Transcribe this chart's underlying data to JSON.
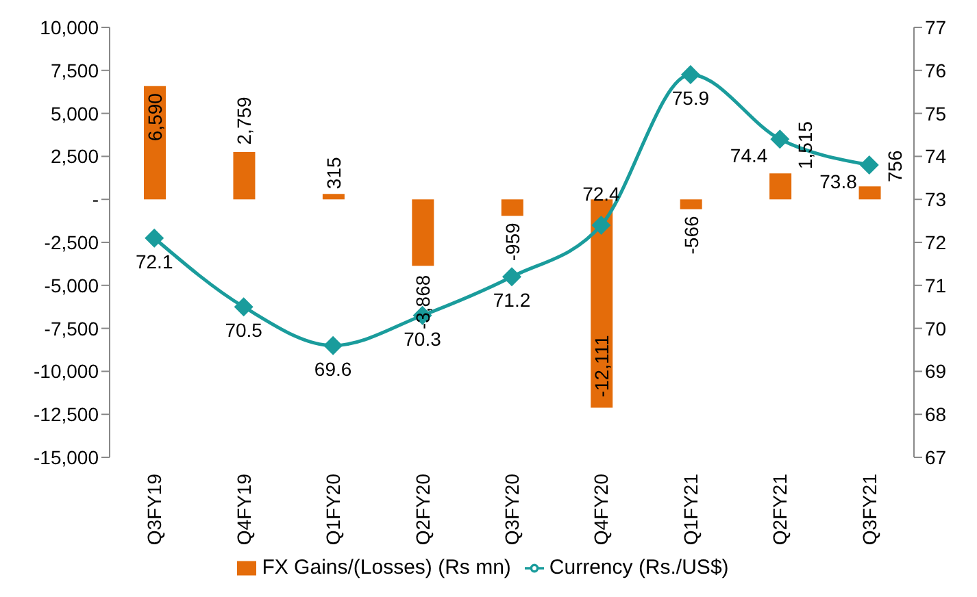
{
  "chart_data": {
    "type": "bar",
    "categories": [
      "Q3FY19",
      "Q4FY19",
      "Q1FY20",
      "Q2FY20",
      "Q3FY20",
      "Q4FY20",
      "Q1FY21",
      "Q2FY21",
      "Q3FY21"
    ],
    "series": [
      {
        "name": "FX Gains/(Losses) (Rs mn)",
        "color": "#e46c0a",
        "values": [
          6590,
          2759,
          315,
          -3868,
          -959,
          -12111,
          -566,
          1515,
          756
        ],
        "value_labels": [
          "6,590",
          "2,759",
          "315",
          "-3,868",
          "-959",
          "-12,111",
          "-566",
          "1,515",
          "756"
        ]
      },
      {
        "name": "Currency (Rs./US$)",
        "type": "line",
        "axis": "y2",
        "color": "#1a9c9c",
        "values": [
          72.1,
          70.5,
          69.6,
          70.3,
          71.2,
          72.4,
          75.9,
          74.4,
          73.8
        ],
        "value_labels": [
          "72.1",
          "70.5",
          "69.6",
          "70.3",
          "71.2",
          "72.4",
          "75.9",
          "74.4",
          "73.8"
        ]
      }
    ],
    "ylim": [
      -15000,
      10000
    ],
    "yticks": [
      {
        "value": -15000,
        "label": "-15,000"
      },
      {
        "value": -12500,
        "label": "-12,500"
      },
      {
        "value": -10000,
        "label": "-10,000"
      },
      {
        "value": -7500,
        "label": "-7,500"
      },
      {
        "value": -5000,
        "label": "-5,000"
      },
      {
        "value": -2500,
        "label": "-2,500"
      },
      {
        "value": 0,
        "label": "-"
      },
      {
        "value": 2500,
        "label": "2,500"
      },
      {
        "value": 5000,
        "label": "5,000"
      },
      {
        "value": 7500,
        "label": "7,500"
      },
      {
        "value": 10000,
        "label": "10,000"
      }
    ],
    "y2lim": [
      67,
      77
    ],
    "y2ticks": [
      67,
      68,
      69,
      70,
      71,
      72,
      73,
      74,
      75,
      76,
      77
    ],
    "legend": "bottom",
    "marker": "diamond"
  }
}
